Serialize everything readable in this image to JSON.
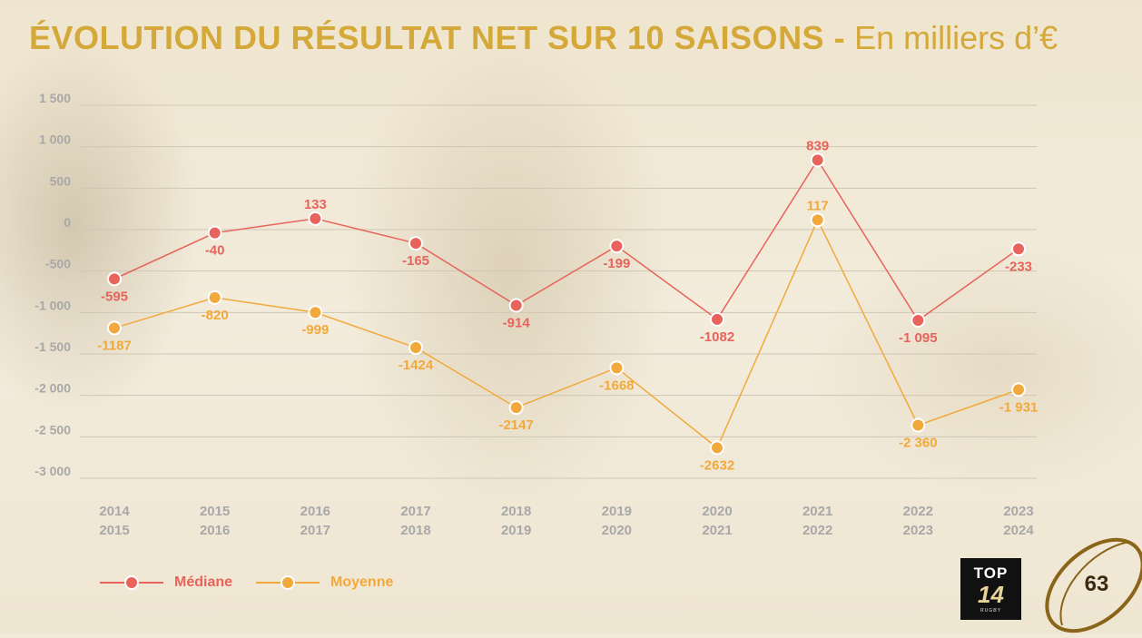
{
  "title": {
    "main": "ÉVOLUTION DU RÉSULTAT NET SUR 10 SAISONS -",
    "sub": "En milliers d’€"
  },
  "colors": {
    "title": "#d4a93a",
    "mediane": "#e8635c",
    "moyenne": "#f2a93b",
    "grid": "#cfc6b4",
    "axis_text": "#a8a8a8"
  },
  "chart_data": {
    "type": "line",
    "title": "ÉVOLUTION DU RÉSULTAT NET SUR 10 SAISONS - En milliers d’€",
    "categories": [
      [
        "2014",
        "2015"
      ],
      [
        "2015",
        "2016"
      ],
      [
        "2016",
        "2017"
      ],
      [
        "2017",
        "2018"
      ],
      [
        "2018",
        "2019"
      ],
      [
        "2019",
        "2020"
      ],
      [
        "2020",
        "2021"
      ],
      [
        "2021",
        "2022"
      ],
      [
        "2022",
        "2023"
      ],
      [
        "2023",
        "2024"
      ]
    ],
    "yticks": [
      1500,
      1000,
      500,
      0,
      -500,
      -1000,
      -1500,
      -2000,
      -2500,
      -3000
    ],
    "ytick_labels": [
      "1 500",
      "1 000",
      "500",
      "0",
      "-500",
      "-1 000",
      "-1 500",
      "-2 000",
      "-2 500",
      "-3 000"
    ],
    "ylim": [
      -3000,
      1500
    ],
    "grid": true,
    "legend_position": "bottom-left",
    "series": [
      {
        "name": "Médiane",
        "color": "#e8635c",
        "values": [
          -595,
          -40,
          133,
          -165,
          -914,
          -199,
          -1082,
          839,
          -1095,
          -233
        ],
        "labels": [
          "-595",
          "-40",
          "133",
          "-165",
          "-914",
          "-199",
          "-1082",
          "839",
          "-1 095",
          "-233"
        ],
        "label_pos": [
          "below",
          "below",
          "above",
          "below",
          "below",
          "below",
          "below",
          "above",
          "below",
          "below"
        ]
      },
      {
        "name": "Moyenne",
        "color": "#f2a93b",
        "values": [
          -1187,
          -820,
          -999,
          -1424,
          -2147,
          -1668,
          -2632,
          117,
          -2360,
          -1931
        ],
        "labels": [
          "-1187",
          "-820",
          "-999",
          "-1424",
          "-2147",
          "-1668",
          "-2632",
          "117",
          "-2 360",
          "-1 931"
        ],
        "label_pos": [
          "below",
          "below",
          "below",
          "below",
          "below",
          "below",
          "below",
          "above",
          "below",
          "below"
        ]
      }
    ]
  },
  "legend": {
    "mediane_label": "Médiane",
    "moyenne_label": "Moyenne"
  },
  "logo": {
    "line1": "TOP",
    "line2": "14",
    "line3": "RUGBY"
  },
  "page_number": "63"
}
